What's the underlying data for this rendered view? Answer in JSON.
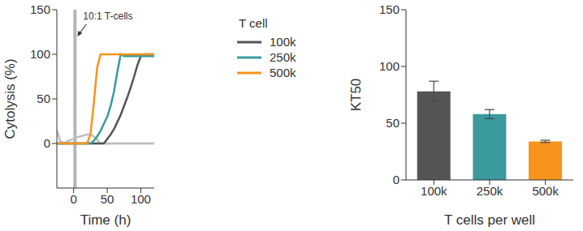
{
  "chart_data": [
    {
      "type": "line",
      "xlabel": "Time (h)",
      "ylabel": "Cytolysis (%)",
      "legend_title": "T cell",
      "legend": "right",
      "x": [
        -25,
        -20,
        -15,
        -10,
        -5,
        0,
        5,
        10,
        15,
        20,
        25,
        30,
        35,
        40,
        45,
        50,
        55,
        60,
        65,
        70,
        75,
        80,
        85,
        90,
        95,
        100,
        105,
        110,
        115,
        120
      ],
      "xlim": [
        -25,
        120
      ],
      "xticks": [
        0,
        50,
        100
      ],
      "ylim": [
        -50,
        150
      ],
      "yticks": [
        0,
        50,
        100,
        150
      ],
      "grid": false,
      "annotations": [
        {
          "type": "vline",
          "x": 2,
          "label": "10:1 T-cells"
        }
      ],
      "series": [
        {
          "color": "#e3cfae",
          "values": [
            0,
            0,
            0,
            0,
            0,
            0,
            0,
            0,
            0,
            0,
            0,
            0,
            0,
            0,
            0,
            0,
            0,
            0,
            0,
            0,
            0,
            0,
            0,
            0,
            0,
            0,
            0,
            0,
            0,
            0
          ]
        },
        {
          "color": "#bdbdbd",
          "values": [
            15,
            3,
            0,
            2,
            4,
            5,
            7,
            8,
            9,
            10,
            10,
            8,
            4,
            0,
            0,
            0,
            0,
            0,
            0,
            0,
            0,
            0,
            0,
            0,
            0,
            0,
            0,
            0,
            0,
            0
          ]
        },
        {
          "name": "100k",
          "color": "#555555",
          "values": [
            0,
            0,
            0,
            0,
            0,
            0,
            0,
            0,
            0,
            0,
            0,
            0,
            0,
            0,
            0,
            5,
            10,
            16,
            24,
            32,
            42,
            52,
            63,
            75,
            88,
            98,
            100,
            100,
            100,
            100
          ]
        },
        {
          "name": "250k",
          "color": "#3a9a9e",
          "values": [
            0,
            0,
            0,
            0,
            0,
            0,
            0,
            0,
            0,
            0,
            0,
            3,
            8,
            14,
            22,
            30,
            42,
            58,
            80,
            100,
            98,
            98,
            98,
            98,
            98,
            98,
            98,
            98,
            98,
            98
          ]
        },
        {
          "name": "500k",
          "color": "#f7941d",
          "values": [
            0,
            0,
            0,
            0,
            0,
            0,
            0,
            0,
            0,
            0,
            10,
            45,
            85,
            100,
            100,
            100,
            100,
            100,
            100,
            100,
            100,
            100,
            100,
            100,
            100,
            100,
            100,
            100,
            100,
            100
          ]
        }
      ]
    },
    {
      "type": "bar",
      "xlabel": "T cells per well",
      "ylabel": "KT50",
      "categories": [
        "100k",
        "250k",
        "500k"
      ],
      "values": [
        78,
        58,
        34
      ],
      "errors": [
        9,
        4,
        1
      ],
      "colors": [
        "#555555",
        "#3a9a9e",
        "#f7941d"
      ],
      "ylim": [
        0,
        150
      ],
      "yticks": [
        0,
        50,
        100,
        150
      ],
      "grid": false
    }
  ]
}
